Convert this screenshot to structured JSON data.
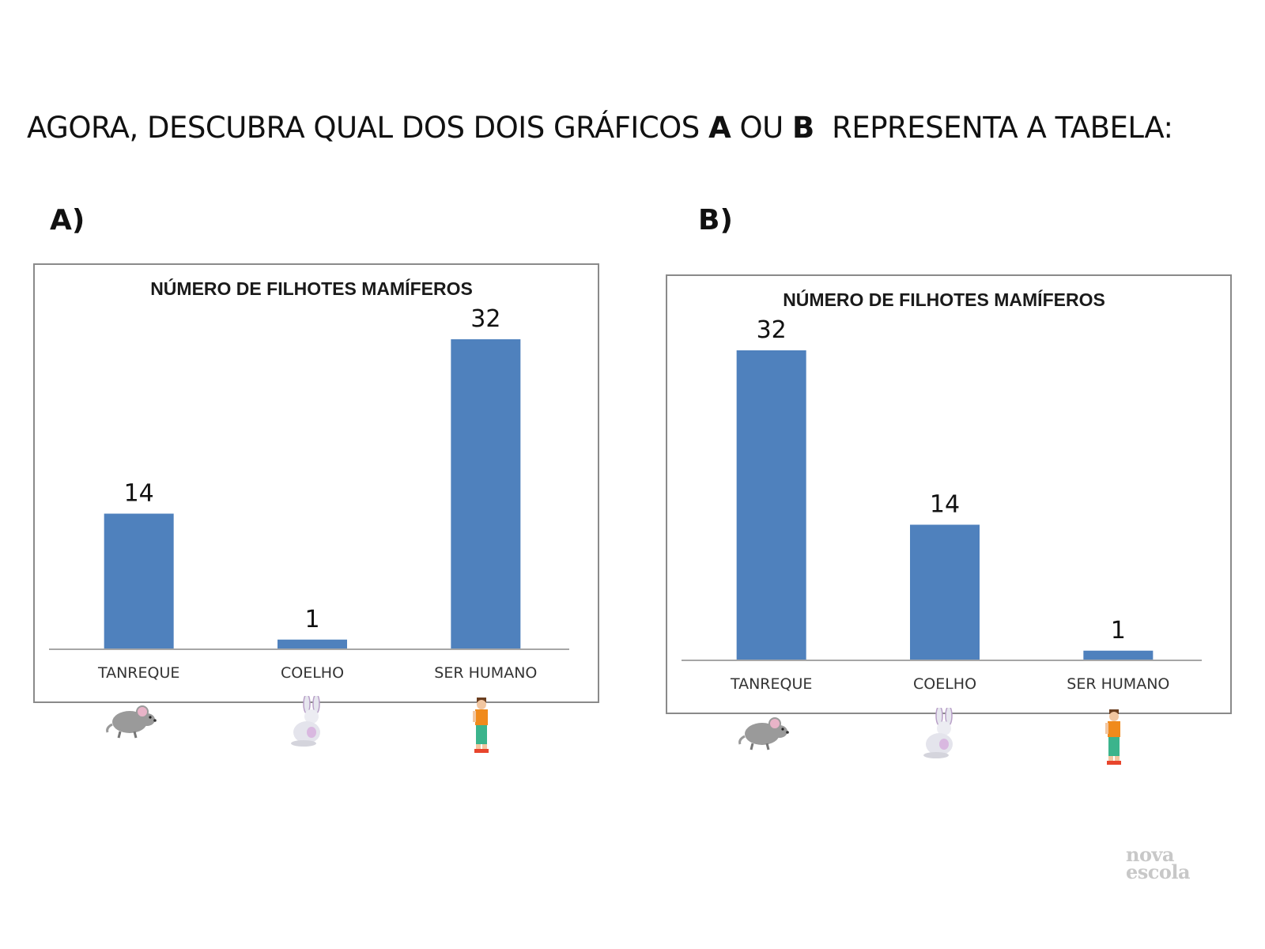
{
  "instruction": {
    "text_before": "AGORA, DESCUBRA QUAL DOS DOIS GRÁFICOS ",
    "option_a": "A",
    "text_mid": " OU ",
    "option_b": "B",
    "text_after": "  REPRESENTA A TABELA:"
  },
  "panels": [
    {
      "label": "A)"
    },
    {
      "label": "B)"
    }
  ],
  "colors": {
    "bar": "#4f81bd",
    "axis": "#a6a6a6",
    "frame": "#8a8a8a"
  },
  "icons": [
    "mouse-icon",
    "rabbit-icon",
    "boy-icon"
  ],
  "logo": {
    "line1": "nova",
    "line2": "escola"
  },
  "chart_data": [
    {
      "type": "bar",
      "title": "NÚMERO DE FILHOTES MAMÍFEROS",
      "categories": [
        "TANREQUE",
        "COELHO",
        "SER HUMANO"
      ],
      "values": [
        14,
        1,
        32
      ],
      "data_labels": [
        "14",
        "1",
        "32"
      ],
      "ylim": [
        0,
        32
      ],
      "grid": false,
      "legend": "none"
    },
    {
      "type": "bar",
      "title": "NÚMERO DE FILHOTES MAMÍFEROS",
      "categories": [
        "TANREQUE",
        "COELHO",
        "SER HUMANO"
      ],
      "values": [
        32,
        14,
        1
      ],
      "data_labels": [
        "32",
        "14",
        "1"
      ],
      "ylim": [
        0,
        32
      ],
      "grid": false,
      "legend": "none"
    }
  ]
}
